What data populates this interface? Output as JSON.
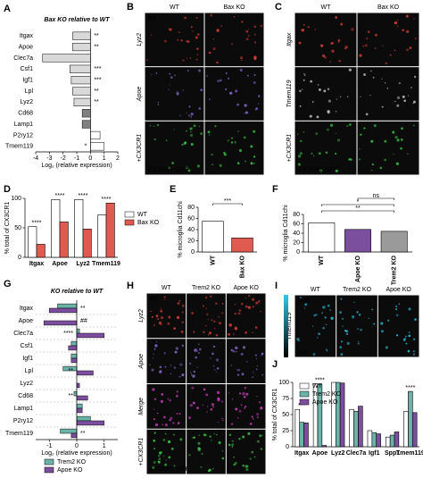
{
  "chart_data": [
    {
      "type": "hbar",
      "panel": "A",
      "title": "Bax KO relative to WT",
      "xlabel": "Log₂ (relative expression)",
      "categories": [
        "Itgax",
        "Apoe",
        "Clec7a",
        "Csf1",
        "Igf1",
        "Lpl",
        "Lyz2",
        "Cd68",
        "Lamp1",
        "P2ry12",
        "Tmem119"
      ],
      "values": [
        -1.3,
        -1.3,
        -3.5,
        -1.5,
        -1.4,
        -1.3,
        -1.2,
        -0.6,
        -0.6,
        0.7,
        1.0
      ],
      "colors": [
        "#d9d9d9",
        "#d9d9d9",
        "#d9d9d9",
        "#d9d9d9",
        "#d9d9d9",
        "#d9d9d9",
        "#d9d9d9",
        "#808080",
        "#808080",
        "#ffffff",
        "#ffffff"
      ],
      "annotations": [
        "**",
        "**",
        null,
        "***",
        "***",
        "**",
        "**",
        null,
        null,
        null,
        "*"
      ],
      "xlim": [
        -4,
        2
      ],
      "xticks": [
        -4,
        -3,
        -2,
        -1,
        0,
        1,
        2
      ]
    },
    {
      "type": "bar",
      "panel": "D",
      "ylabel": "% total of CX3CR1",
      "categories": [
        "Itgax",
        "Apoe",
        "Lyz2",
        "Tmem119"
      ],
      "series": [
        {
          "name": "WT",
          "color": "#ffffff",
          "values": [
            52,
            98,
            98,
            72
          ]
        },
        {
          "name": "Bax KO",
          "color": "#e05a4f",
          "values": [
            22,
            60,
            48,
            92
          ]
        }
      ],
      "annotations": [
        "****",
        "****",
        "****",
        "****"
      ],
      "ylim": [
        0,
        100
      ],
      "yticks": [
        0,
        50,
        100
      ]
    },
    {
      "type": "bar",
      "panel": "E",
      "ylabel": "% microglia Cd11chi",
      "categories": [
        "WT",
        "Bax KO"
      ],
      "values": [
        55,
        25
      ],
      "colors": [
        "#ffffff",
        "#e05a4f"
      ],
      "significance": [
        "***"
      ],
      "ylim": [
        0,
        80
      ],
      "yticks": [
        0,
        20,
        40,
        60,
        80
      ]
    },
    {
      "type": "bar",
      "panel": "F",
      "ylabel": "% microglia Cd11chi",
      "categories": [
        "WT",
        "Apoe KO",
        "Trem2 KO"
      ],
      "values": [
        62,
        48,
        44
      ],
      "colors": [
        "#ffffff",
        "#7b4f9e",
        "#9a9a9a"
      ],
      "significance": [
        "**",
        "*",
        "ns"
      ],
      "ylim": [
        0,
        80
      ],
      "yticks": [
        0,
        20,
        40,
        60,
        80
      ]
    },
    {
      "type": "hbar",
      "panel": "G",
      "title": "KO relative to WT",
      "xlabel": "Log₂ (relative expression)",
      "categories": [
        "Itgax",
        "Apoe",
        "Clec7a",
        "Csf1",
        "Igf1",
        "Lpl",
        "Lyz2",
        "Cd68",
        "Lamp1",
        "P2ry12",
        "Tmem119"
      ],
      "series": [
        {
          "name": "Trem2 KO",
          "color": "#6bb3a8",
          "values": [
            -0.7,
            0.0,
            0.1,
            -0.2,
            -0.2,
            -0.5,
            0.0,
            -0.1,
            0.2,
            0.5,
            -0.6
          ]
        },
        {
          "name": "Apoe KO",
          "color": "#7b4f9e",
          "values": [
            -1.0,
            -1.2,
            1.0,
            -0.3,
            -0.2,
            0.6,
            0.1,
            0.4,
            0.2,
            1.0,
            -0.2
          ]
        }
      ],
      "annotations": [
        "**",
        "##",
        "****",
        null,
        null,
        "**",
        null,
        "**",
        null,
        null,
        "**"
      ],
      "row_dividers": true,
      "xlim": [
        -1.5,
        1.5
      ],
      "xticks": [
        -1,
        0,
        1
      ]
    },
    {
      "type": "bar",
      "panel": "J",
      "ylabel": "% total of CX3CR1",
      "categories": [
        "Itgax",
        "Apoe",
        "Lyz2",
        "Clec7a",
        "Igf1",
        "Spp1",
        "Tmem119"
      ],
      "series": [
        {
          "name": "WT",
          "color": "#ffffff",
          "values": [
            58,
            98,
            100,
            58,
            25,
            15,
            55
          ]
        },
        {
          "name": "Trem2 KO",
          "color": "#6bb3a8",
          "values": [
            38,
            97,
            100,
            55,
            22,
            18,
            86
          ]
        },
        {
          "name": "Apoe KO",
          "color": "#7b4f9e",
          "values": [
            37,
            2,
            99,
            63,
            20,
            23,
            53
          ]
        }
      ],
      "annotations": [
        "***",
        "****",
        null,
        null,
        null,
        null,
        "****"
      ],
      "ylim": [
        0,
        100
      ],
      "yticks": [
        0,
        25,
        50,
        75,
        100
      ]
    }
  ],
  "image_panels": [
    {
      "panel": "B",
      "age": "P7",
      "columns": [
        "WT",
        "Bax KO"
      ],
      "rows": [
        "Lyz2",
        "Apoe",
        "+CX3CR1"
      ],
      "row_colors": [
        "#e0403a",
        "#8a6ad0",
        "#3fd04a"
      ],
      "footer": "CX3CR1-GFP"
    },
    {
      "panel": "C",
      "columns": [
        "WT",
        "Bax KO"
      ],
      "rows": [
        "Itgax",
        "Tmem119",
        "+CX3CR1"
      ],
      "row_colors": [
        "#e0403a",
        "#cccccc",
        "#3fd04a"
      ],
      "footer": "CX3CR1-GFP"
    },
    {
      "panel": "H",
      "age": "P7",
      "columns": [
        "WT",
        "Trem2 KO",
        "Apoe KO"
      ],
      "rows": [
        "Lyz2",
        "Apoe",
        "Merge",
        "+CX3CR1"
      ],
      "row_colors": [
        "#e0403a",
        "#8a6ad0",
        "#d040c0",
        "#3fd04a"
      ],
      "footer": "CX3CR1-GFP"
    },
    {
      "panel": "I",
      "columns": [
        "WT",
        "Trem2 KO",
        "Apoe KO"
      ],
      "rows": [
        "Tmem119"
      ],
      "row_colors": [
        "#30c8e8"
      ],
      "scale": [
        "high",
        "low"
      ]
    }
  ]
}
